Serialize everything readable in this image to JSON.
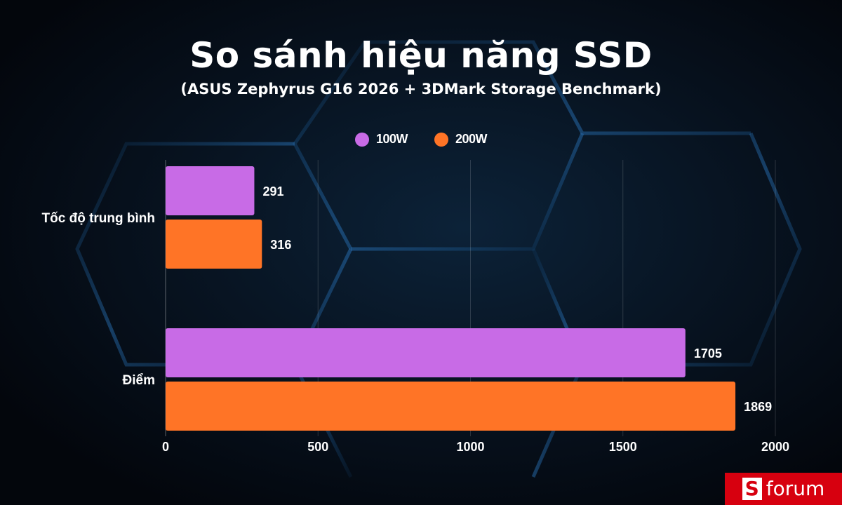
{
  "chart_data": {
    "type": "bar",
    "orientation": "horizontal",
    "title": "So sánh hiệu năng SSD",
    "subtitle": "(ASUS Zephyrus G16 2026 + 3DMark Storage Benchmark)",
    "categories": [
      "Tốc độ trung bình",
      "Điểm"
    ],
    "series": [
      {
        "name": "100W",
        "color": "#c86be6",
        "values": [
          291,
          1705
        ]
      },
      {
        "name": "200W",
        "color": "#ff7426",
        "values": [
          316,
          1869
        ]
      }
    ],
    "xlim": [
      0,
      2000
    ],
    "xticks": [
      0,
      500,
      1000,
      1500,
      2000
    ],
    "grid": true,
    "legend_position": "top-center",
    "data_labels": true
  },
  "brand": {
    "s": "S",
    "name": "forum",
    "color": "#d7000f"
  }
}
